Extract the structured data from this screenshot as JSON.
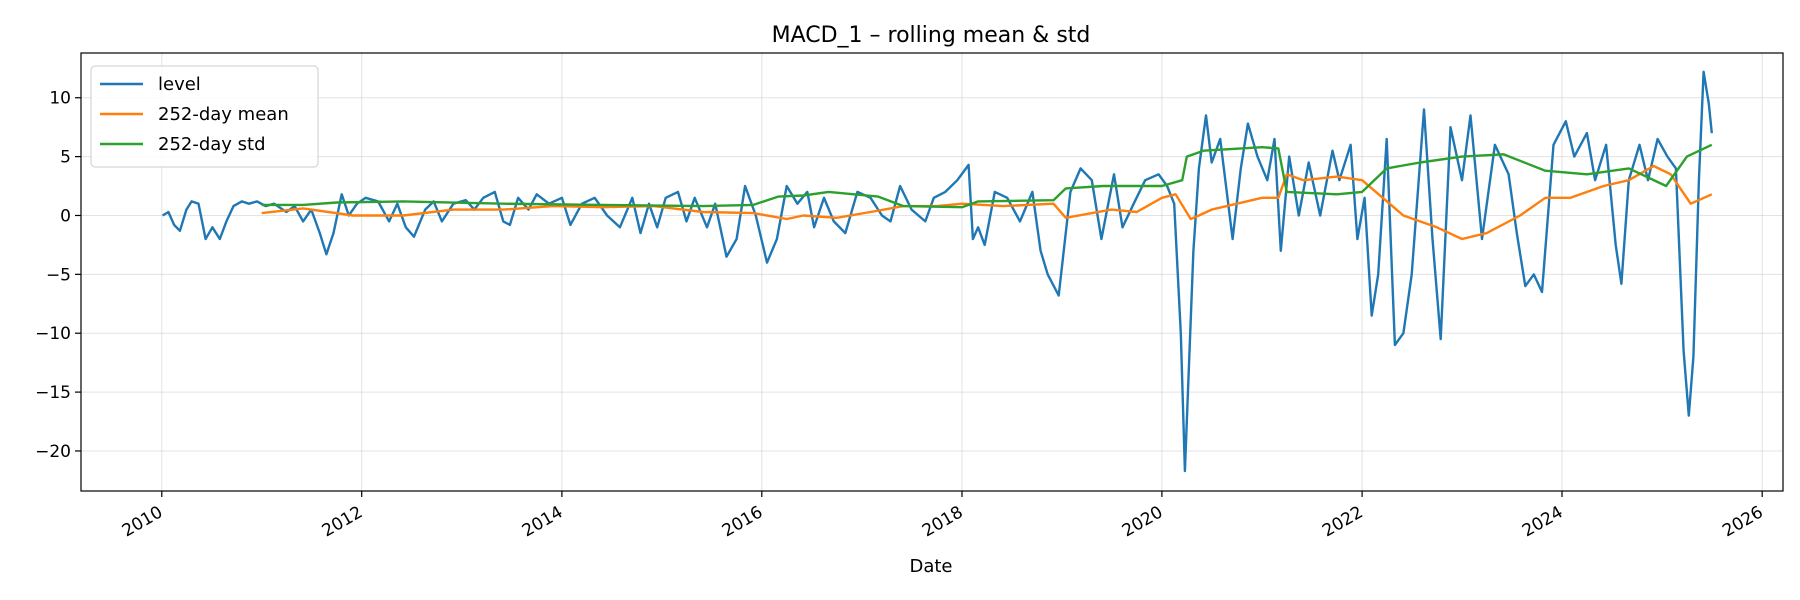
{
  "chart_data": {
    "type": "line",
    "title": "MACD_1 – rolling mean & std",
    "xlabel": "Date",
    "ylabel": "",
    "x_axis_type": "date",
    "xlim": [
      "2009-03-12",
      "2026-03-18"
    ],
    "ylim": [
      -23.4,
      13.8
    ],
    "x_ticks": [
      "2010",
      "2012",
      "2014",
      "2016",
      "2018",
      "2020",
      "2022",
      "2024",
      "2026"
    ],
    "y_ticks": [
      10,
      5,
      0,
      -5,
      -10,
      -15,
      -20
    ],
    "y_tick_labels": [
      "10",
      "5",
      "0",
      "−5",
      "−10",
      "−15",
      "−20"
    ],
    "grid": true,
    "legend_position": "top-left",
    "colors": {
      "level": "#1f77b4",
      "mean": "#ff7f0e",
      "std": "#2ca02c"
    },
    "series": [
      {
        "name": "level",
        "color": "#1f77b4",
        "points": [
          [
            "2010-01-04",
            0.0
          ],
          [
            "2010-01-25",
            0.3
          ],
          [
            "2010-02-15",
            -0.8
          ],
          [
            "2010-03-08",
            -1.3
          ],
          [
            "2010-04-01",
            0.5
          ],
          [
            "2010-04-20",
            1.2
          ],
          [
            "2010-05-15",
            1.0
          ],
          [
            "2010-06-10",
            -2.0
          ],
          [
            "2010-07-05",
            -1.0
          ],
          [
            "2010-08-01",
            -2.0
          ],
          [
            "2010-08-25",
            -0.5
          ],
          [
            "2010-09-20",
            0.8
          ],
          [
            "2010-10-20",
            1.2
          ],
          [
            "2010-11-15",
            1.0
          ],
          [
            "2010-12-15",
            1.2
          ],
          [
            "2011-01-15",
            0.8
          ],
          [
            "2011-02-15",
            1.0
          ],
          [
            "2011-04-01",
            0.3
          ],
          [
            "2011-05-01",
            0.8
          ],
          [
            "2011-06-01",
            -0.5
          ],
          [
            "2011-07-01",
            0.5
          ],
          [
            "2011-08-01",
            -1.5
          ],
          [
            "2011-08-25",
            -3.3
          ],
          [
            "2011-09-20",
            -1.5
          ],
          [
            "2011-10-20",
            1.8
          ],
          [
            "2011-11-15",
            0.0
          ],
          [
            "2011-12-15",
            1.0
          ],
          [
            "2012-01-15",
            1.5
          ],
          [
            "2012-03-01",
            1.2
          ],
          [
            "2012-04-10",
            -0.5
          ],
          [
            "2012-05-10",
            1.0
          ],
          [
            "2012-06-10",
            -1.0
          ],
          [
            "2012-07-10",
            -1.8
          ],
          [
            "2012-08-20",
            0.5
          ],
          [
            "2012-09-20",
            1.2
          ],
          [
            "2012-10-20",
            -0.5
          ],
          [
            "2012-12-01",
            1.0
          ],
          [
            "2013-01-15",
            1.3
          ],
          [
            "2013-02-15",
            0.5
          ],
          [
            "2013-03-20",
            1.5
          ],
          [
            "2013-05-01",
            2.0
          ],
          [
            "2013-06-01",
            -0.5
          ],
          [
            "2013-06-25",
            -0.8
          ],
          [
            "2013-07-25",
            1.5
          ],
          [
            "2013-09-01",
            0.5
          ],
          [
            "2013-10-01",
            1.8
          ],
          [
            "2013-11-15",
            1.0
          ],
          [
            "2014-01-01",
            1.5
          ],
          [
            "2014-02-01",
            -0.8
          ],
          [
            "2014-03-15",
            1.0
          ],
          [
            "2014-05-01",
            1.5
          ],
          [
            "2014-06-15",
            0.0
          ],
          [
            "2014-08-01",
            -1.0
          ],
          [
            "2014-09-15",
            1.5
          ],
          [
            "2014-10-15",
            -1.5
          ],
          [
            "2014-11-15",
            1.0
          ],
          [
            "2014-12-15",
            -1.0
          ],
          [
            "2015-01-15",
            1.5
          ],
          [
            "2015-03-01",
            2.0
          ],
          [
            "2015-04-01",
            -0.5
          ],
          [
            "2015-05-01",
            1.5
          ],
          [
            "2015-06-15",
            -1.0
          ],
          [
            "2015-07-15",
            1.0
          ],
          [
            "2015-08-25",
            -3.5
          ],
          [
            "2015-10-01",
            -2.0
          ],
          [
            "2015-11-01",
            2.5
          ],
          [
            "2015-12-10",
            0.0
          ],
          [
            "2016-01-20",
            -4.0
          ],
          [
            "2016-02-25",
            -2.0
          ],
          [
            "2016-04-01",
            2.5
          ],
          [
            "2016-05-10",
            1.0
          ],
          [
            "2016-06-15",
            2.0
          ],
          [
            "2016-07-10",
            -1.0
          ],
          [
            "2016-08-15",
            1.5
          ],
          [
            "2016-09-20",
            -0.5
          ],
          [
            "2016-11-01",
            -1.5
          ],
          [
            "2016-12-15",
            2.0
          ],
          [
            "2017-02-01",
            1.5
          ],
          [
            "2017-03-15",
            0.0
          ],
          [
            "2017-04-15",
            -0.5
          ],
          [
            "2017-05-20",
            2.5
          ],
          [
            "2017-07-01",
            0.5
          ],
          [
            "2017-08-20",
            -0.5
          ],
          [
            "2017-09-20",
            1.5
          ],
          [
            "2017-11-01",
            2.0
          ],
          [
            "2017-12-15",
            3.0
          ],
          [
            "2018-01-25",
            4.3
          ],
          [
            "2018-02-10",
            -2.0
          ],
          [
            "2018-03-01",
            -1.0
          ],
          [
            "2018-03-25",
            -2.5
          ],
          [
            "2018-05-01",
            2.0
          ],
          [
            "2018-06-15",
            1.5
          ],
          [
            "2018-08-01",
            -0.5
          ],
          [
            "2018-09-15",
            2.0
          ],
          [
            "2018-10-15",
            -3.0
          ],
          [
            "2018-11-10",
            -5.0
          ],
          [
            "2018-12-20",
            -6.8
          ],
          [
            "2019-02-01",
            2.0
          ],
          [
            "2019-03-10",
            4.0
          ],
          [
            "2019-04-20",
            3.0
          ],
          [
            "2019-05-25",
            -2.0
          ],
          [
            "2019-07-10",
            3.5
          ],
          [
            "2019-08-10",
            -1.0
          ],
          [
            "2019-09-20",
            1.0
          ],
          [
            "2019-11-01",
            3.0
          ],
          [
            "2019-12-20",
            3.5
          ],
          [
            "2020-01-20",
            2.5
          ],
          [
            "2020-02-15",
            1.0
          ],
          [
            "2020-03-10",
            -10.0
          ],
          [
            "2020-03-25",
            -21.7
          ],
          [
            "2020-04-10",
            -12.0
          ],
          [
            "2020-04-25",
            -3.0
          ],
          [
            "2020-05-15",
            4.0
          ],
          [
            "2020-06-10",
            8.5
          ],
          [
            "2020-07-01",
            4.5
          ],
          [
            "2020-08-01",
            6.5
          ],
          [
            "2020-09-15",
            -2.0
          ],
          [
            "2020-10-15",
            4.0
          ],
          [
            "2020-11-10",
            7.8
          ],
          [
            "2020-12-15",
            5.0
          ],
          [
            "2021-01-20",
            3.0
          ],
          [
            "2021-02-15",
            6.5
          ],
          [
            "2021-03-10",
            -3.0
          ],
          [
            "2021-04-10",
            5.0
          ],
          [
            "2021-05-15",
            0.0
          ],
          [
            "2021-06-20",
            4.5
          ],
          [
            "2021-08-01",
            0.0
          ],
          [
            "2021-09-15",
            5.5
          ],
          [
            "2021-10-10",
            3.0
          ],
          [
            "2021-11-20",
            6.0
          ],
          [
            "2021-12-15",
            -2.0
          ],
          [
            "2022-01-10",
            1.5
          ],
          [
            "2022-02-05",
            -8.5
          ],
          [
            "2022-03-01",
            -5.0
          ],
          [
            "2022-04-01",
            6.5
          ],
          [
            "2022-05-01",
            -11.0
          ],
          [
            "2022-06-01",
            -10.0
          ],
          [
            "2022-07-01",
            -5.0
          ],
          [
            "2022-08-15",
            9.0
          ],
          [
            "2022-09-15",
            -2.0
          ],
          [
            "2022-10-15",
            -10.5
          ],
          [
            "2022-11-20",
            7.5
          ],
          [
            "2023-01-01",
            3.0
          ],
          [
            "2023-02-01",
            8.5
          ],
          [
            "2023-03-15",
            -2.0
          ],
          [
            "2023-05-01",
            6.0
          ],
          [
            "2023-06-20",
            3.5
          ],
          [
            "2023-07-20",
            -1.5
          ],
          [
            "2023-08-20",
            -6.0
          ],
          [
            "2023-09-20",
            -5.0
          ],
          [
            "2023-10-20",
            -6.5
          ],
          [
            "2023-12-01",
            6.0
          ],
          [
            "2024-01-15",
            8.0
          ],
          [
            "2024-02-15",
            5.0
          ],
          [
            "2024-04-01",
            7.0
          ],
          [
            "2024-05-01",
            3.0
          ],
          [
            "2024-06-10",
            6.0
          ],
          [
            "2024-07-15",
            -2.5
          ],
          [
            "2024-08-05",
            -5.8
          ],
          [
            "2024-09-01",
            3.0
          ],
          [
            "2024-10-10",
            6.0
          ],
          [
            "2024-11-10",
            3.0
          ],
          [
            "2024-12-15",
            6.5
          ],
          [
            "2025-01-20",
            5.0
          ],
          [
            "2025-02-20",
            4.0
          ],
          [
            "2025-03-20",
            -11.5
          ],
          [
            "2025-04-08",
            -17.0
          ],
          [
            "2025-04-25",
            -12.0
          ],
          [
            "2025-05-15",
            3.0
          ],
          [
            "2025-06-01",
            12.2
          ],
          [
            "2025-06-20",
            9.5
          ],
          [
            "2025-07-01",
            7.0
          ]
        ]
      },
      {
        "name": "252-day mean",
        "color": "#ff7f0e",
        "points": [
          [
            "2011-01-01",
            0.2
          ],
          [
            "2011-06-01",
            0.6
          ],
          [
            "2011-12-01",
            0.0
          ],
          [
            "2012-06-01",
            0.0
          ],
          [
            "2012-12-01",
            0.5
          ],
          [
            "2013-06-01",
            0.5
          ],
          [
            "2013-12-01",
            0.8
          ],
          [
            "2014-06-01",
            0.7
          ],
          [
            "2014-12-01",
            0.8
          ],
          [
            "2015-06-01",
            0.3
          ],
          [
            "2015-12-01",
            0.2
          ],
          [
            "2016-04-01",
            -0.3
          ],
          [
            "2016-06-01",
            0.0
          ],
          [
            "2016-10-01",
            -0.2
          ],
          [
            "2017-02-01",
            0.3
          ],
          [
            "2017-06-01",
            0.8
          ],
          [
            "2017-10-01",
            0.8
          ],
          [
            "2018-01-01",
            1.0
          ],
          [
            "2018-06-01",
            0.8
          ],
          [
            "2018-12-01",
            1.0
          ],
          [
            "2019-01-15",
            -0.2
          ],
          [
            "2019-07-01",
            0.5
          ],
          [
            "2019-10-01",
            0.3
          ],
          [
            "2020-01-01",
            1.5
          ],
          [
            "2020-02-20",
            1.8
          ],
          [
            "2020-04-15",
            -0.3
          ],
          [
            "2020-05-15",
            0.0
          ],
          [
            "2020-07-01",
            0.5
          ],
          [
            "2020-10-01",
            1.0
          ],
          [
            "2021-01-01",
            1.5
          ],
          [
            "2021-03-01",
            1.5
          ],
          [
            "2021-04-01",
            3.5
          ],
          [
            "2021-06-01",
            3.0
          ],
          [
            "2021-10-01",
            3.3
          ],
          [
            "2022-01-01",
            3.0
          ],
          [
            "2022-06-01",
            0.0
          ],
          [
            "2022-10-01",
            -1.0
          ],
          [
            "2023-01-01",
            -2.0
          ],
          [
            "2023-04-01",
            -1.5
          ],
          [
            "2023-08-01",
            0.0
          ],
          [
            "2023-11-01",
            1.5
          ],
          [
            "2024-02-01",
            1.5
          ],
          [
            "2024-06-01",
            2.5
          ],
          [
            "2024-09-01",
            3.0
          ],
          [
            "2024-12-01",
            4.2
          ],
          [
            "2025-02-01",
            3.5
          ],
          [
            "2025-04-15",
            1.0
          ],
          [
            "2025-07-01",
            1.8
          ]
        ]
      },
      {
        "name": "252-day std",
        "color": "#2ca02c",
        "points": [
          [
            "2011-01-01",
            0.9
          ],
          [
            "2011-06-01",
            0.9
          ],
          [
            "2011-10-01",
            1.1
          ],
          [
            "2012-06-01",
            1.2
          ],
          [
            "2013-06-01",
            1.0
          ],
          [
            "2014-06-01",
            0.9
          ],
          [
            "2015-06-01",
            0.8
          ],
          [
            "2015-12-01",
            0.9
          ],
          [
            "2016-03-01",
            1.6
          ],
          [
            "2016-06-01",
            1.7
          ],
          [
            "2016-09-01",
            2.0
          ],
          [
            "2017-03-01",
            1.6
          ],
          [
            "2017-06-01",
            0.8
          ],
          [
            "2018-01-01",
            0.7
          ],
          [
            "2018-03-01",
            1.2
          ],
          [
            "2018-12-01",
            1.3
          ],
          [
            "2019-01-15",
            2.3
          ],
          [
            "2019-06-01",
            2.5
          ],
          [
            "2020-01-01",
            2.5
          ],
          [
            "2020-03-15",
            3.0
          ],
          [
            "2020-04-01",
            5.0
          ],
          [
            "2020-06-01",
            5.5
          ],
          [
            "2021-01-01",
            5.8
          ],
          [
            "2021-03-01",
            5.7
          ],
          [
            "2021-04-01",
            2.0
          ],
          [
            "2021-10-01",
            1.8
          ],
          [
            "2022-01-01",
            2.0
          ],
          [
            "2022-04-01",
            4.0
          ],
          [
            "2022-08-01",
            4.5
          ],
          [
            "2023-01-01",
            5.0
          ],
          [
            "2023-06-01",
            5.2
          ],
          [
            "2023-11-01",
            3.8
          ],
          [
            "2024-04-01",
            3.5
          ],
          [
            "2024-09-01",
            4.0
          ],
          [
            "2025-01-15",
            2.5
          ],
          [
            "2025-04-01",
            5.0
          ],
          [
            "2025-07-01",
            6.0
          ]
        ]
      }
    ]
  }
}
